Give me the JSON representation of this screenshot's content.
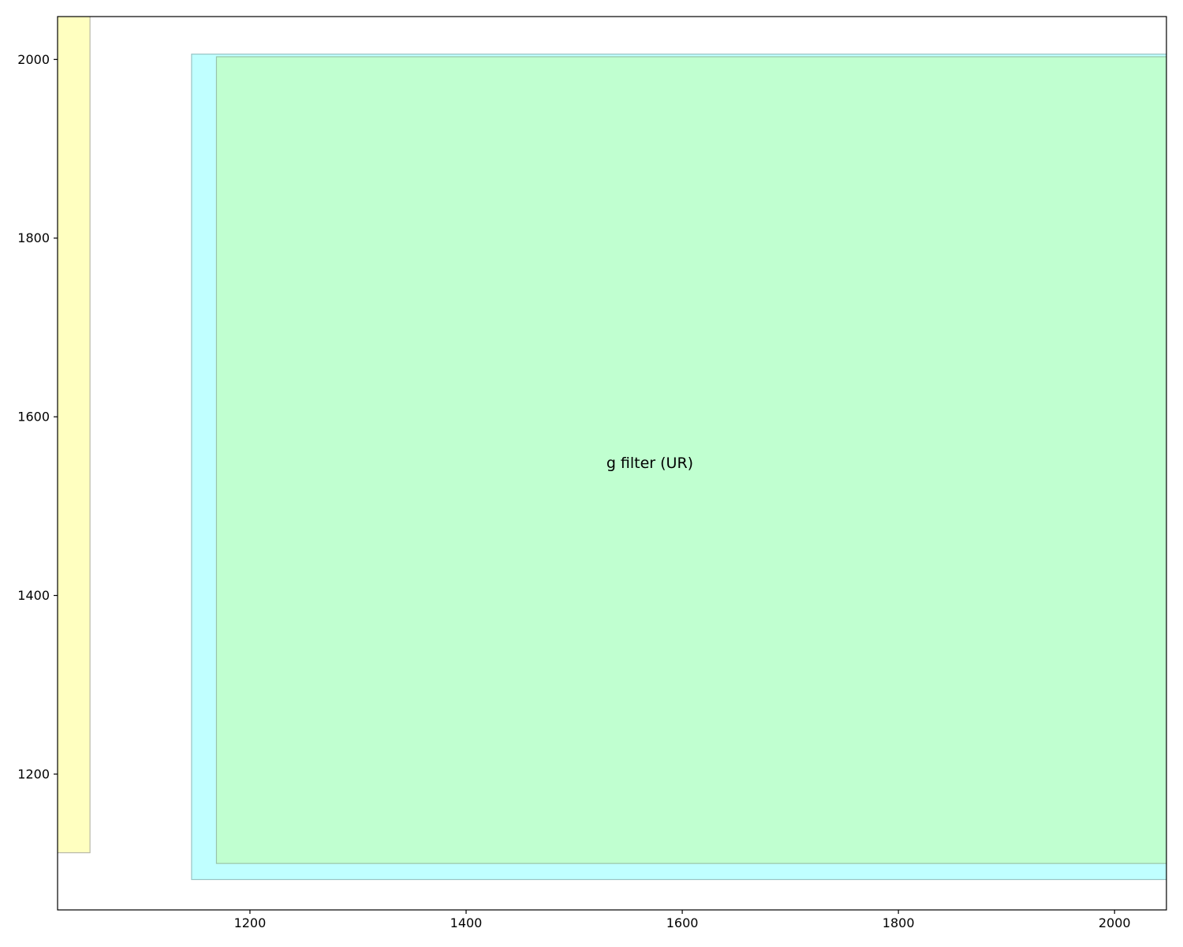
{
  "chart_data": {
    "type": "rectangles",
    "title": "",
    "xlabel": "",
    "ylabel": "",
    "xlim": [
      1022,
      2048
    ],
    "ylim": [
      1048,
      2048
    ],
    "grid": false,
    "x_ticks": [
      1200,
      1400,
      1600,
      1800,
      2000
    ],
    "y_ticks": [
      1200,
      1400,
      1600,
      1800,
      2000
    ],
    "regions": [
      {
        "x0": 1000,
        "x1": 1052,
        "y0": 1112,
        "y1": 2100,
        "fill": "#ffffc0",
        "edge": "#b8b8a8"
      },
      {
        "x0": 1146,
        "x1": 2100,
        "y0": 1082,
        "y1": 2006,
        "fill": "#c0ffff",
        "edge": "#99c4c4"
      },
      {
        "x0": 1169,
        "x1": 2100,
        "y0": 1100,
        "y1": 2003,
        "fill": "#c0ffd0",
        "edge": "#99c4a8"
      }
    ],
    "annotations": [
      {
        "text": "g filter (UR)",
        "x": 1570,
        "y": 1548
      }
    ]
  }
}
